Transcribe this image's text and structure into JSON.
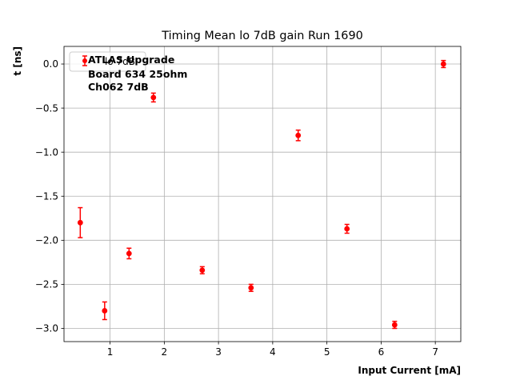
{
  "chart_data": {
    "type": "scatter",
    "title": "Timing Mean lo 7dB gain Run 1690",
    "xlabel": "Input Current [mA]",
    "ylabel": "t [ns]",
    "xlim": [
      0.15,
      7.47
    ],
    "ylim": [
      -3.15,
      0.2
    ],
    "x_ticks": [
      1,
      2,
      3,
      4,
      5,
      6,
      7
    ],
    "y_ticks": [
      0.0,
      -0.5,
      -1.0,
      -1.5,
      -2.0,
      -2.5,
      -3.0
    ],
    "x_tick_labels": [
      "1",
      "2",
      "3",
      "4",
      "5",
      "6",
      "7"
    ],
    "y_tick_labels": [
      "0.0",
      "−0.5",
      "−1.0",
      "−1.5",
      "−2.0",
      "−2.5",
      "−3.0"
    ],
    "grid": true,
    "legend_position": "top-left",
    "annotations": [
      "ATLAS Upgrade",
      "Board 634 25ohm",
      "Ch062 7dB"
    ],
    "series": [
      {
        "name": "lo 7dB",
        "color": "#ff0000",
        "marker": "circle",
        "x": [
          0.45,
          0.9,
          1.35,
          1.8,
          2.7,
          3.6,
          4.47,
          5.37,
          6.25,
          7.15
        ],
        "y": [
          -1.8,
          -2.8,
          -2.15,
          -0.38,
          -2.34,
          -2.54,
          -0.81,
          -1.87,
          -2.96,
          0.0
        ],
        "yerr": [
          0.17,
          0.1,
          0.06,
          0.05,
          0.04,
          0.04,
          0.06,
          0.05,
          0.04,
          0.04
        ]
      }
    ]
  }
}
